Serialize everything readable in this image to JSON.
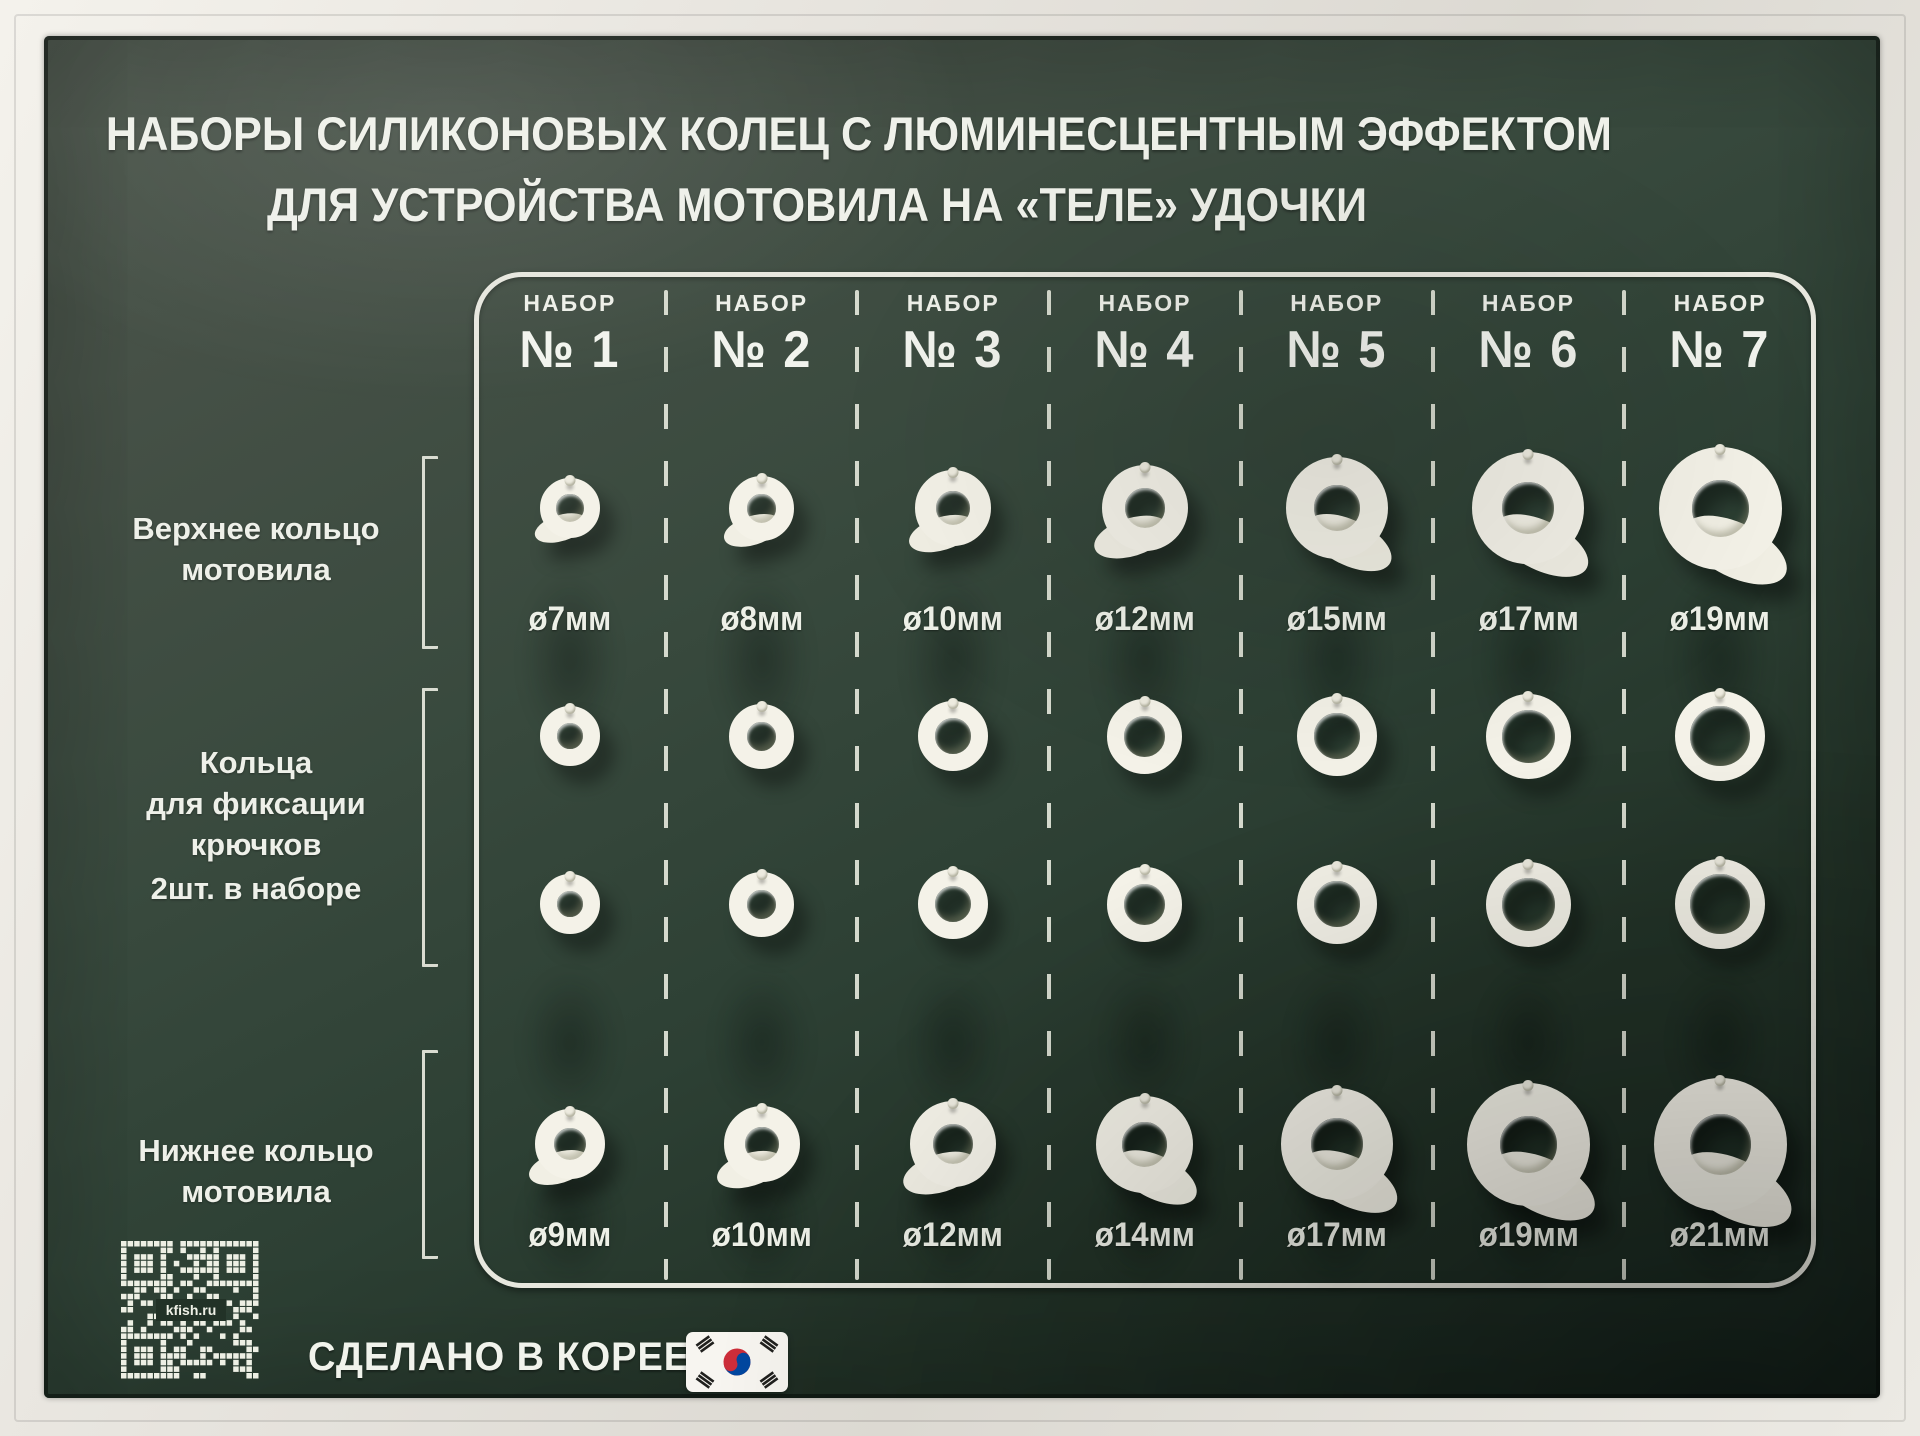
{
  "title": {
    "line1": "НАБОРЫ СИЛИКОНОВЫХ КОЛЕЦ С ЛЮМИНЕСЦЕНТНЫМ ЭФФЕКТОМ",
    "line2": "ДЛЯ УСТРОЙСТВА МОТОВИЛА НА «ТЕЛЕ» УДОЧКИ"
  },
  "row_labels": {
    "top_line1": "Верхнее кольцо",
    "top_line2": "мотовила",
    "mid_line1": "Кольца",
    "mid_line2": "для фиксации",
    "mid_line3": "крючков",
    "mid_note": "2шт. в наборе",
    "bottom_line1": "Нижнее кольцо",
    "bottom_line2": "мотовила"
  },
  "sets": [
    {
      "label": "НАБОР",
      "number": "№ 1",
      "top_diameter": "ø7мм",
      "top_mm": 7,
      "bottom_diameter": "ø9мм",
      "bottom_mm": 9
    },
    {
      "label": "НАБОР",
      "number": "№ 2",
      "top_diameter": "ø8мм",
      "top_mm": 8,
      "bottom_diameter": "ø10мм",
      "bottom_mm": 10
    },
    {
      "label": "НАБОР",
      "number": "№ 3",
      "top_diameter": "ø10мм",
      "top_mm": 10,
      "bottom_diameter": "ø12мм",
      "bottom_mm": 12
    },
    {
      "label": "НАБОР",
      "number": "№ 4",
      "top_diameter": "ø12мм",
      "top_mm": 12,
      "bottom_diameter": "ø14мм",
      "bottom_mm": 14
    },
    {
      "label": "НАБОР",
      "number": "№ 5",
      "top_diameter": "ø15мм",
      "top_mm": 15,
      "bottom_diameter": "ø17мм",
      "bottom_mm": 17
    },
    {
      "label": "НАБОР",
      "number": "№ 6",
      "top_diameter": "ø17мм",
      "top_mm": 17,
      "bottom_diameter": "ø19мм",
      "bottom_mm": 19
    },
    {
      "label": "НАБОР",
      "number": "№ 7",
      "top_diameter": "ø19мм",
      "top_mm": 19,
      "bottom_diameter": "ø21мм",
      "bottom_mm": 21
    }
  ],
  "footer": {
    "made_in": "СДЕЛАНО В КОРЕЕ",
    "qr_text": "kfish.ru",
    "flag_icon": "korea-flag"
  },
  "colors": {
    "board_green_light": "#4d574d",
    "board_green_dark": "#18261f",
    "frame_white": "#e9e6e0",
    "line_white": "#e7e7de",
    "text_white": "#eff1ea",
    "ring_white": "#f4f2e8",
    "flag_red": "#cd2e3a",
    "flag_blue": "#0047a0"
  }
}
